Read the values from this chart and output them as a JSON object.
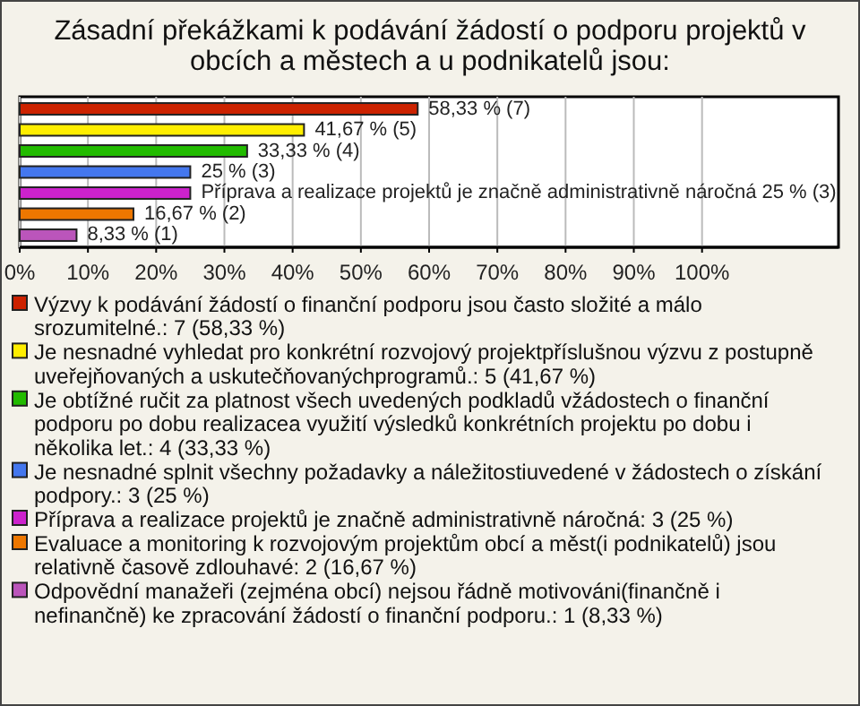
{
  "chart_data": {
    "type": "bar",
    "orientation": "horizontal",
    "stacked": true,
    "title": "Zásadní překážkami k podávání žádostí o podporu projektů v obcích a městech a u podnikatelů jsou:",
    "categories": [
      null,
      null,
      null,
      null,
      null,
      null,
      null
    ],
    "series": [
      {
        "name": "Výzvy k podávání žádostí o finanční podporu jsou často složité a málo srozumitelné.: 7 (58,33 %)",
        "color": "#cc2200",
        "values": [
          58.33,
          null,
          null,
          null,
          null,
          null,
          null
        ],
        "value_labels": [
          "58,33 % (7)",
          null,
          null,
          null,
          null,
          null,
          null
        ]
      },
      {
        "name": "Je nesnadné vyhledat pro konkrétní rozvojový projektpříslušnou výzvu z postupně uveřejňovaných a uskutečňovanýchprogramů.: 5 (41,67 %)",
        "color": "#ffee00",
        "values": [
          null,
          41.67,
          null,
          null,
          null,
          null,
          null
        ],
        "value_labels": [
          null,
          "41,67 % (5)",
          null,
          null,
          null,
          null,
          null
        ]
      },
      {
        "name": "Je obtížné ručit za platnost všech uvedených podkladů vžádostech o finanční podporu po dobu realizacea využití výsledků konkrétních projektu po dobu i několika let.: 4 (33,33 %)",
        "color": "#22bb00",
        "values": [
          null,
          null,
          33.33,
          null,
          null,
          null,
          null
        ],
        "value_labels": [
          null,
          null,
          "33,33 % (4)",
          null,
          null,
          null,
          null
        ]
      },
      {
        "name": "Je nesnadné splnit všechny požadavky a náležitostiuvedené v žádostech o získání podpory.: 3 (25 %)",
        "color": "#4477ee",
        "values": [
          null,
          null,
          null,
          25,
          null,
          null,
          null
        ],
        "value_labels": [
          null,
          null,
          null,
          "25 % (3)",
          null,
          null,
          null
        ]
      },
      {
        "name": "Příprava a realizace projektů je značně administrativně náročná: 3 (25 %)",
        "color": "#cc22cc",
        "values": [
          null,
          null,
          null,
          null,
          25,
          null,
          null
        ],
        "value_labels": [
          null,
          null,
          null,
          null,
          "Příprava a realizace projektů je značně administrativně náročná 25 % (3)",
          null,
          null
        ]
      },
      {
        "name": "Evaluace a monitoring k rozvojovým projektům obcí a měst(i podnikatelů) jsou relativně časově zdlouhavé: 2 (16,67 %)",
        "color": "#ee7700",
        "values": [
          null,
          null,
          null,
          null,
          null,
          16.67,
          null
        ],
        "value_labels": [
          null,
          null,
          null,
          null,
          null,
          "16,67 % (2)",
          null
        ]
      },
      {
        "name": "Odpovědní manažeři (zejména obcí) nejsou řádně motivováni(finančně i nefinančně) ke zpracování žádostí o finanční podporu.: 1 (8,33 %)",
        "color": "#bb55bb",
        "values": [
          null,
          null,
          null,
          null,
          null,
          null,
          8.33
        ],
        "value_labels": [
          null,
          null,
          null,
          null,
          null,
          null,
          "8,33 % (1)"
        ]
      }
    ],
    "xlim": [
      0,
      120
    ],
    "xticks": [
      {
        "value": 0,
        "label": "0%"
      },
      {
        "value": 10,
        "label": "10%"
      },
      {
        "value": 20,
        "label": "20%"
      },
      {
        "value": 30,
        "label": "30%"
      },
      {
        "value": 40,
        "label": "40%"
      },
      {
        "value": 50,
        "label": "50%"
      },
      {
        "value": 60,
        "label": "60%"
      },
      {
        "value": 70,
        "label": "70%"
      },
      {
        "value": 80,
        "label": "80%"
      },
      {
        "value": 90,
        "label": "90%"
      },
      {
        "value": 100,
        "label": "100%"
      }
    ],
    "grid": "x",
    "legend": "bottom",
    "tick_labels": "x"
  }
}
